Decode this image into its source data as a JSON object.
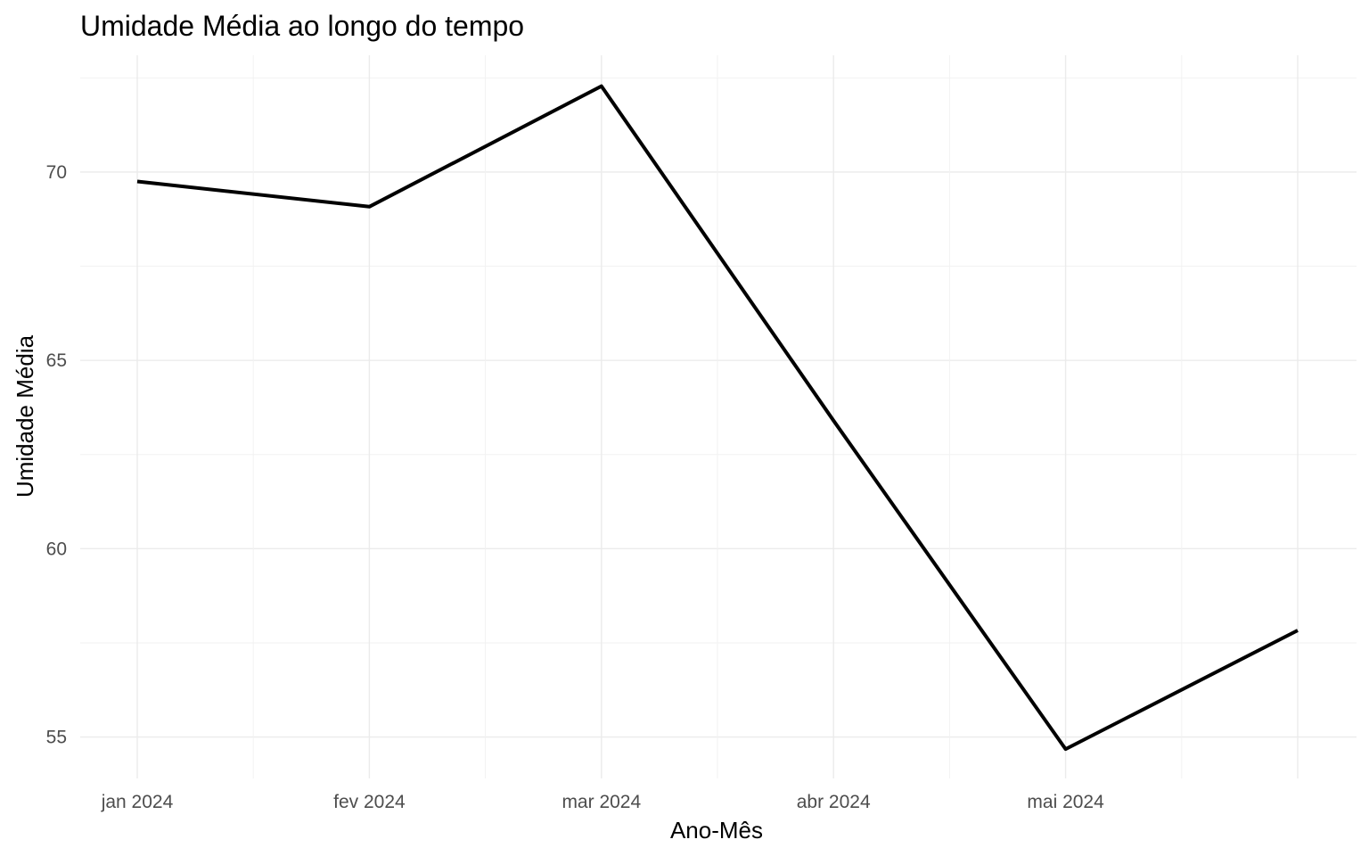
{
  "chart_data": {
    "type": "line",
    "title": "Umidade Média ao longo do tempo",
    "xlabel": "Ano-Mês",
    "ylabel": "Umidade Média",
    "x": [
      "2024-01",
      "2024-02",
      "2024-03",
      "2024-04",
      "2024-05",
      "2024-06"
    ],
    "x_tick_labels": [
      {
        "x": "2024-01",
        "label": "jan 2024"
      },
      {
        "x": "2024-02",
        "label": "fev 2024"
      },
      {
        "x": "2024-03",
        "label": "mar 2024"
      },
      {
        "x": "2024-04",
        "label": "abr 2024"
      },
      {
        "x": "2024-05",
        "label": "mai 2024"
      }
    ],
    "series": [
      {
        "values": [
          69.75,
          69.08,
          72.28,
          63.4,
          54.68,
          57.83
        ]
      }
    ],
    "y_ticks": [
      55,
      60,
      65,
      70
    ],
    "ylim": [
      53.9,
      73.1
    ],
    "grid": true,
    "legend": "none",
    "colors": {
      "line": "#000000",
      "grid": "#ebebeb",
      "tick_text": "#4d4d4d"
    }
  }
}
